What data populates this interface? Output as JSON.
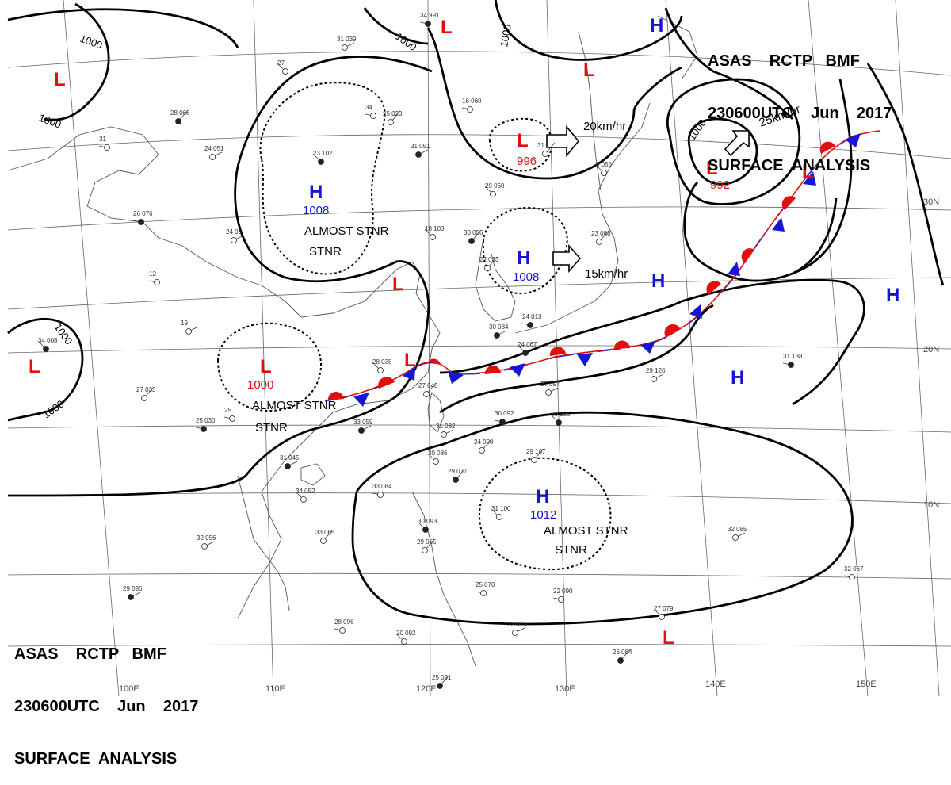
{
  "header": {
    "line1": "ASAS    RCTP   BMF",
    "line2": "230600UTC    Jun    2017",
    "line3": "SURFACE  ANALYSIS"
  },
  "systems": [
    {
      "type": "H",
      "pressure": "1008",
      "note": "ALMOST STNR"
    },
    {
      "type": "H",
      "pressure": "1008",
      "note": ""
    },
    {
      "type": "H",
      "pressure": "1012",
      "note": "ALMOST STNR"
    },
    {
      "type": "L",
      "pressure": "1000",
      "note": "ALMOST STNR"
    },
    {
      "type": "L",
      "pressure": "996",
      "note": ""
    },
    {
      "type": "L",
      "pressure": "992",
      "note": ""
    }
  ],
  "motions": {
    "low_996": "20km/hr",
    "low_992": "25km/hr",
    "high_1008": "15km/hr"
  },
  "isobar_labels": [
    "1000",
    "1000",
    "1000",
    "1000",
    "1000",
    "1000"
  ],
  "grid": {
    "lat_labels": [
      "30N",
      "20N",
      "10N"
    ],
    "lon_labels": [
      "100E",
      "110E",
      "120E",
      "130E",
      "140E",
      "150E"
    ]
  },
  "stations": [
    "34 991",
    "31 039",
    "27",
    "28 066",
    "31",
    "24 051",
    "23 102",
    "25 023",
    "34",
    "31 051",
    "29 060",
    "31",
    "26 076",
    "24 05",
    "18 103",
    "30 056",
    "12",
    "19",
    "34 008",
    "27 033",
    "25",
    "33 059",
    "28 038",
    "27 048",
    "30 092",
    "31 082",
    "30 086",
    "29 077",
    "33 084",
    "32 056",
    "30 093",
    "29 055",
    "28 096",
    "29 096",
    "31 100",
    "29 107",
    "31 138",
    "32 085",
    "27 079",
    "26 084",
    "32 067",
    "29 126",
    "24 067",
    "23 088",
    "16 060",
    "31 045",
    "34 052",
    "33 065",
    "25 030",
    "27 097",
    "20 092",
    "25 091",
    "25 070",
    "22 075",
    "30 105",
    "24 098",
    "22 090",
    "30 084",
    "6 055",
    "22 033",
    "24 013"
  ]
}
